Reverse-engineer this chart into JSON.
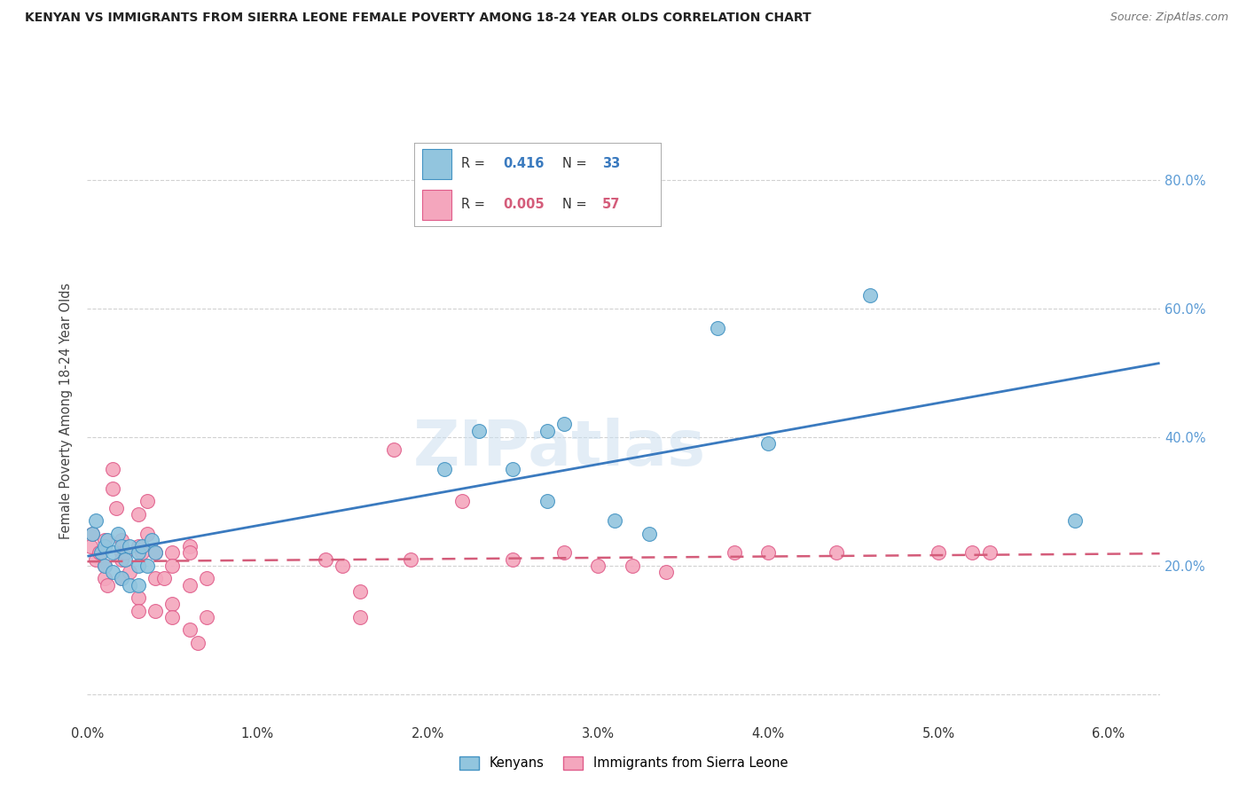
{
  "title": "KENYAN VS IMMIGRANTS FROM SIERRA LEONE FEMALE POVERTY AMONG 18-24 YEAR OLDS CORRELATION CHART",
  "source": "Source: ZipAtlas.com",
  "ylabel": "Female Poverty Among 18-24 Year Olds",
  "xlim": [
    0.0,
    0.063
  ],
  "ylim": [
    -0.04,
    0.92
  ],
  "xticks": [
    0.0,
    0.01,
    0.02,
    0.03,
    0.04,
    0.05,
    0.06
  ],
  "xticklabels": [
    "0.0%",
    "1.0%",
    "2.0%",
    "3.0%",
    "4.0%",
    "5.0%",
    "6.0%"
  ],
  "yticks": [
    0.0,
    0.2,
    0.4,
    0.6,
    0.8
  ],
  "yticklabels": [
    "",
    "20.0%",
    "40.0%",
    "60.0%",
    "80.0%"
  ],
  "legend_label1": "Kenyans",
  "legend_label2": "Immigrants from Sierra Leone",
  "R1": "0.416",
  "N1": "33",
  "R2": "0.005",
  "N2": "57",
  "color1": "#92c5de",
  "color2": "#f4a6bd",
  "edge_color1": "#4393c3",
  "edge_color2": "#e05c8a",
  "line_color1": "#3a7abf",
  "line_color2": "#d45c7a",
  "background_color": "#ffffff",
  "grid_color": "#cccccc",
  "right_tick_color": "#5b9bd5",
  "kenyans_x": [
    0.0003,
    0.0005,
    0.0008,
    0.001,
    0.001,
    0.0012,
    0.0015,
    0.0015,
    0.0018,
    0.002,
    0.002,
    0.0022,
    0.0025,
    0.0025,
    0.003,
    0.003,
    0.003,
    0.0032,
    0.0035,
    0.0038,
    0.004,
    0.021,
    0.023,
    0.025,
    0.027,
    0.027,
    0.028,
    0.031,
    0.033,
    0.037,
    0.04,
    0.046,
    0.058
  ],
  "kenyans_y": [
    0.25,
    0.27,
    0.22,
    0.23,
    0.2,
    0.24,
    0.22,
    0.19,
    0.25,
    0.23,
    0.18,
    0.21,
    0.17,
    0.23,
    0.22,
    0.2,
    0.17,
    0.23,
    0.2,
    0.24,
    0.22,
    0.35,
    0.41,
    0.35,
    0.41,
    0.3,
    0.42,
    0.27,
    0.25,
    0.57,
    0.39,
    0.62,
    0.27
  ],
  "sierra_leone_x": [
    0.0002,
    0.0003,
    0.0005,
    0.0007,
    0.001,
    0.001,
    0.001,
    0.0012,
    0.0015,
    0.0015,
    0.0017,
    0.002,
    0.002,
    0.002,
    0.002,
    0.0022,
    0.0025,
    0.003,
    0.003,
    0.003,
    0.003,
    0.0032,
    0.0035,
    0.0035,
    0.004,
    0.004,
    0.004,
    0.0045,
    0.005,
    0.005,
    0.005,
    0.005,
    0.006,
    0.006,
    0.006,
    0.006,
    0.0065,
    0.007,
    0.007,
    0.014,
    0.015,
    0.016,
    0.016,
    0.018,
    0.019,
    0.022,
    0.025,
    0.028,
    0.03,
    0.032,
    0.034,
    0.038,
    0.04,
    0.044,
    0.05,
    0.052,
    0.053
  ],
  "sierra_leone_y": [
    0.23,
    0.25,
    0.21,
    0.22,
    0.2,
    0.18,
    0.24,
    0.17,
    0.35,
    0.32,
    0.29,
    0.22,
    0.24,
    0.18,
    0.21,
    0.22,
    0.19,
    0.28,
    0.23,
    0.15,
    0.13,
    0.22,
    0.25,
    0.3,
    0.18,
    0.22,
    0.13,
    0.18,
    0.22,
    0.2,
    0.14,
    0.12,
    0.1,
    0.17,
    0.23,
    0.22,
    0.08,
    0.18,
    0.12,
    0.21,
    0.2,
    0.16,
    0.12,
    0.38,
    0.21,
    0.3,
    0.21,
    0.22,
    0.2,
    0.2,
    0.19,
    0.22,
    0.22,
    0.22,
    0.22,
    0.22,
    0.22
  ],
  "watermark_text": "ZIPatlas",
  "watermark_color": "#ccdff0",
  "watermark_alpha": 0.55
}
